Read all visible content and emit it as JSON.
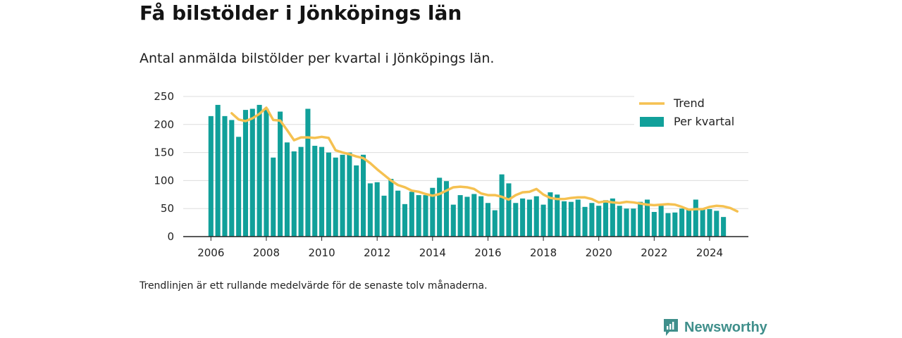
{
  "header": {
    "title": "Få bilstölder i Jönköpings län",
    "subtitle": "Antal anmälda bilstölder per kvartal i Jönköpings län."
  },
  "footnote": "Trendlinjen är ett rullande medelvärde för de senaste tolv månaderna.",
  "brand": {
    "name": "Newsworthy",
    "icon": "newsworthy-logo-icon"
  },
  "colors": {
    "bar": "#11a09a",
    "trend": "#f5c151",
    "grid": "#dddddd",
    "axis": "#222222",
    "brand": "#3f8f8b"
  },
  "chart_data": {
    "type": "bar",
    "title": "",
    "xlabel": "",
    "ylabel": "",
    "ylim": [
      0,
      250
    ],
    "yticks": [
      0,
      50,
      100,
      150,
      200,
      250
    ],
    "xticks": [
      2006,
      2008,
      2010,
      2012,
      2014,
      2016,
      2018,
      2020,
      2022,
      2024
    ],
    "grid": true,
    "legend_position": "top-right",
    "x_start": 2006.0,
    "x_step": 0.25,
    "series": [
      {
        "name": "Per kvartal",
        "type": "bar",
        "values": [
          215,
          235,
          215,
          208,
          178,
          226,
          228,
          235,
          228,
          141,
          223,
          168,
          152,
          160,
          228,
          162,
          160,
          150,
          141,
          146,
          150,
          127,
          146,
          95,
          97,
          73,
          103,
          82,
          58,
          80,
          74,
          74,
          87,
          105,
          99,
          57,
          74,
          71,
          76,
          72,
          60,
          47,
          111,
          95,
          60,
          68,
          66,
          72,
          57,
          79,
          75,
          63,
          62,
          66,
          53,
          60,
          55,
          65,
          68,
          55,
          50,
          50,
          62,
          66,
          44,
          55,
          42,
          43,
          50,
          50,
          66,
          50,
          49,
          46,
          35
        ]
      },
      {
        "name": "Trend",
        "type": "line",
        "x_start": 2006.75,
        "values": [
          220,
          209,
          206,
          211,
          219,
          230,
          208,
          207,
          190,
          172,
          177,
          177,
          176,
          178,
          176,
          154,
          150,
          147,
          143,
          140,
          131,
          120,
          110,
          100,
          92,
          88,
          82,
          80,
          76,
          73,
          76,
          82,
          88,
          89,
          88,
          85,
          77,
          74,
          74,
          71,
          66,
          74,
          79,
          80,
          85,
          75,
          69,
          67,
          67,
          69,
          70,
          70,
          67,
          61,
          63,
          61,
          60,
          62,
          61,
          59,
          57,
          56,
          57,
          58,
          57,
          53,
          48,
          49,
          49,
          53,
          55,
          54,
          51,
          45
        ]
      }
    ]
  }
}
